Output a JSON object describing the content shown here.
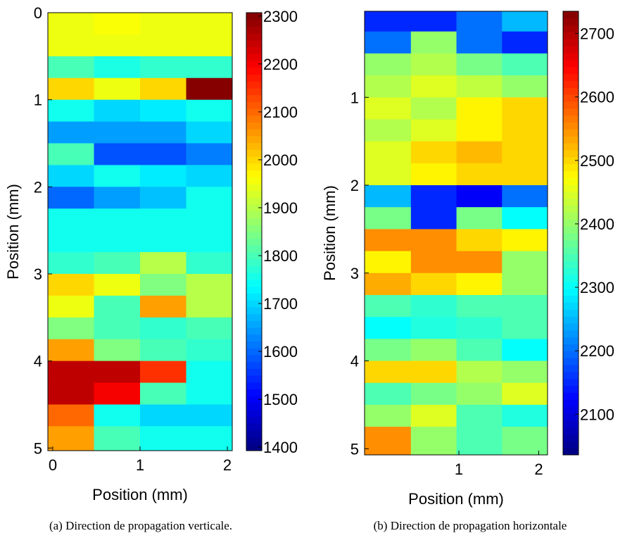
{
  "chart_data": [
    {
      "type": "heatmap",
      "colormap": "jet",
      "xlabel": "Position (mm)",
      "ylabel": "Position (mm)",
      "caption": "(a) Direction de propagation verticale.",
      "xlim": [
        -0.056,
        2.056
      ],
      "ylim": [
        0,
        5.03
      ],
      "xticks": [
        0,
        1,
        2
      ],
      "yticks": [
        0,
        1,
        2,
        3,
        4,
        5
      ],
      "clim": [
        1393,
        2307
      ],
      "cticks": [
        1400,
        1500,
        1600,
        1700,
        1800,
        1900,
        2000,
        2100,
        2200,
        2300
      ],
      "xbins": [
        -0.056,
        0.472,
        1,
        1.528,
        2.056
      ],
      "ybins": [
        0,
        0.25,
        0.5,
        0.75,
        1,
        1.25,
        1.5,
        1.75,
        2,
        2.25,
        2.5,
        2.75,
        3,
        3.25,
        3.5,
        3.75,
        4,
        4.25,
        4.5,
        4.75,
        5.03
      ],
      "values": [
        [
          1950,
          1960,
          1950,
          1950
        ],
        [
          1950,
          1950,
          1950,
          1950
        ],
        [
          1800,
          1760,
          1780,
          1780
        ],
        [
          2000,
          1950,
          2000,
          2300
        ],
        [
          1750,
          1700,
          1720,
          1750
        ],
        [
          1650,
          1650,
          1650,
          1700
        ],
        [
          1800,
          1580,
          1580,
          1620
        ],
        [
          1700,
          1750,
          1720,
          1700
        ],
        [
          1600,
          1650,
          1680,
          1750
        ],
        [
          1750,
          1750,
          1750,
          1750
        ],
        [
          1750,
          1750,
          1750,
          1750
        ],
        [
          1780,
          1800,
          1900,
          1780
        ],
        [
          2000,
          1950,
          1850,
          1900
        ],
        [
          1950,
          1800,
          2050,
          1900
        ],
        [
          1850,
          1800,
          1780,
          1800
        ],
        [
          2050,
          1850,
          1800,
          1780
        ],
        [
          2250,
          2250,
          2150,
          1750
        ],
        [
          2250,
          2200,
          1800,
          1750
        ],
        [
          2100,
          1750,
          1700,
          1700
        ],
        [
          2050,
          1800,
          1750,
          1750
        ]
      ]
    },
    {
      "type": "heatmap",
      "colormap": "jet",
      "xlabel": "Position (mm)",
      "ylabel": "Position (mm)",
      "caption": "(b) Direction de propagation horizontale",
      "xlim": [
        -0.18,
        2.11
      ],
      "ylim": [
        0.02,
        5.07
      ],
      "xticks": [
        1,
        2
      ],
      "yticks": [
        1,
        2,
        3,
        4,
        5
      ],
      "clim": [
        2036,
        2735
      ],
      "cticks": [
        2100,
        2200,
        2300,
        2400,
        2500,
        2600,
        2700
      ],
      "xbins": [
        -0.18,
        0.4,
        0.97,
        1.54,
        2.11
      ],
      "ybins": [
        0.02,
        0.25,
        0.5,
        0.75,
        1,
        1.25,
        1.5,
        1.75,
        2,
        2.25,
        2.5,
        2.75,
        3,
        3.25,
        3.5,
        3.75,
        4,
        4.25,
        4.5,
        4.75,
        5.07
      ],
      "values": [
        [
          2150,
          2150,
          2200,
          2250
        ],
        [
          2200,
          2400,
          2200,
          2150
        ],
        [
          2400,
          2420,
          2380,
          2350
        ],
        [
          2420,
          2450,
          2430,
          2400
        ],
        [
          2450,
          2420,
          2480,
          2500
        ],
        [
          2420,
          2450,
          2480,
          2500
        ],
        [
          2450,
          2500,
          2520,
          2500
        ],
        [
          2450,
          2480,
          2500,
          2500
        ],
        [
          2250,
          2150,
          2120,
          2200
        ],
        [
          2380,
          2150,
          2380,
          2300
        ],
        [
          2550,
          2550,
          2500,
          2480
        ],
        [
          2480,
          2550,
          2550,
          2400
        ],
        [
          2530,
          2500,
          2480,
          2400
        ],
        [
          2350,
          2330,
          2350,
          2350
        ],
        [
          2300,
          2320,
          2330,
          2350
        ],
        [
          2380,
          2400,
          2350,
          2300
        ],
        [
          2500,
          2500,
          2420,
          2400
        ],
        [
          2350,
          2380,
          2400,
          2450
        ],
        [
          2400,
          2450,
          2350,
          2320
        ],
        [
          2550,
          2400,
          2350,
          2380
        ]
      ]
    }
  ]
}
